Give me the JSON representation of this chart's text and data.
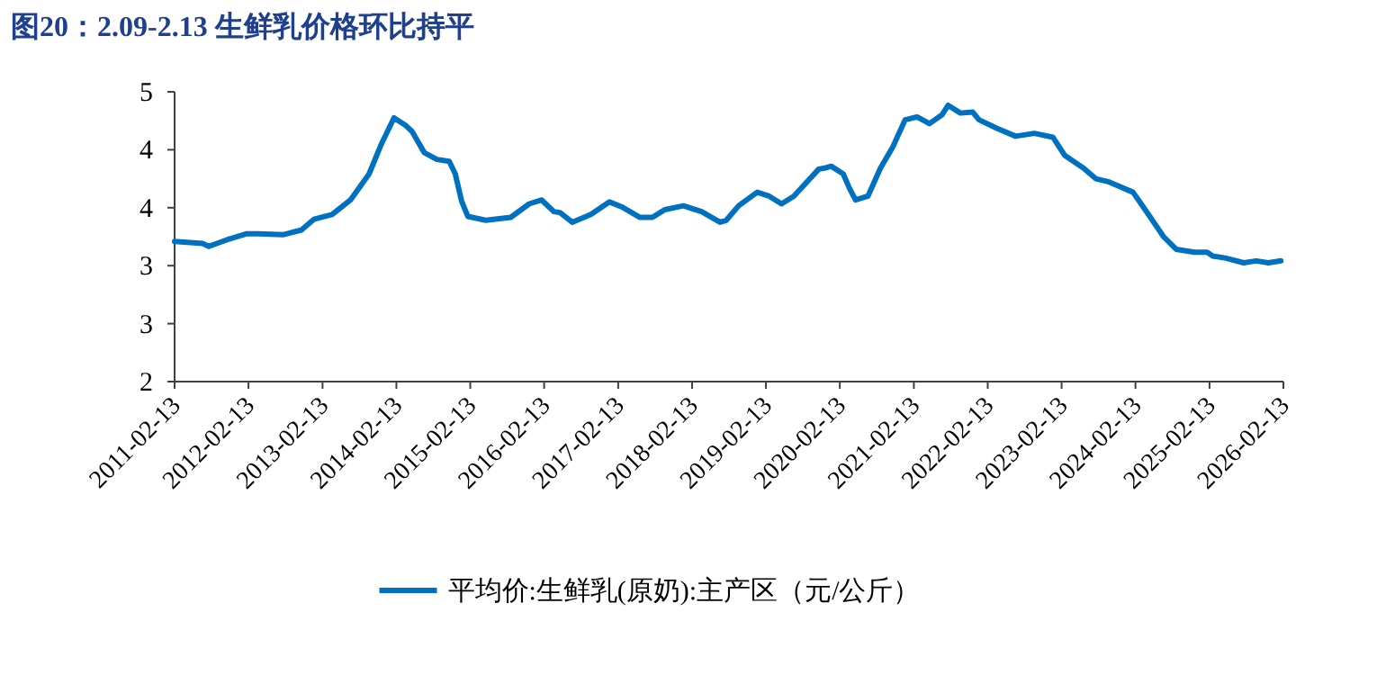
{
  "chart_data": {
    "type": "line",
    "title": "图20：2.09-2.13 生鲜乳价格环比持平",
    "x": [
      "2011-02-13",
      "2011-07",
      "2011-08",
      "2011-11",
      "2012-02",
      "2012-04",
      "2012-08",
      "2012-11",
      "2013-01",
      "2013-04",
      "2013-07",
      "2013-10",
      "2013-12",
      "2014-02",
      "2014-04",
      "2014-05",
      "2014-07",
      "2014-09",
      "2014-11",
      "2014-12",
      "2015-01",
      "2015-02",
      "2015-05",
      "2015-09",
      "2015-12",
      "2016-02",
      "2016-04",
      "2016-05",
      "2016-07",
      "2016-10",
      "2017-01",
      "2017-03",
      "2017-06",
      "2017-08",
      "2017-10",
      "2018-01",
      "2018-04",
      "2018-07",
      "2018-08",
      "2018-10",
      "2019-01",
      "2019-03",
      "2019-05",
      "2019-07",
      "2019-11",
      "2019-12",
      "2020-01",
      "2020-03",
      "2020-04",
      "2020-05",
      "2020-07",
      "2020-09",
      "2020-11",
      "2021-01",
      "2021-03",
      "2021-05",
      "2021-07",
      "2021-08",
      "2021-10",
      "2021-12",
      "2022-01",
      "2022-04",
      "2022-07",
      "2022-10",
      "2023-01",
      "2023-03",
      "2023-06",
      "2023-08",
      "2023-10",
      "2024-02",
      "2024-04",
      "2024-07",
      "2024-09",
      "2024-12",
      "2025-02",
      "2025-03",
      "2025-05",
      "2025-08",
      "2025-10",
      "2025-12",
      "2026-02"
    ],
    "series": [
      {
        "name": "平均价:生鲜乳(原奶):主产区（元/公斤）",
        "color": "#0070c0",
        "values": [
          3.45,
          3.43,
          3.4,
          3.47,
          3.53,
          3.53,
          3.52,
          3.57,
          3.68,
          3.73,
          3.88,
          4.15,
          4.46,
          4.73,
          4.65,
          4.59,
          4.37,
          4.3,
          4.28,
          4.15,
          3.87,
          3.71,
          3.67,
          3.7,
          3.84,
          3.88,
          3.76,
          3.75,
          3.65,
          3.73,
          3.86,
          3.81,
          3.7,
          3.7,
          3.78,
          3.82,
          3.76,
          3.65,
          3.67,
          3.82,
          3.96,
          3.92,
          3.84,
          3.92,
          4.2,
          4.21,
          4.23,
          4.15,
          4.0,
          3.88,
          3.92,
          4.21,
          4.43,
          4.71,
          4.74,
          4.67,
          4.76,
          4.86,
          4.78,
          4.79,
          4.71,
          4.62,
          4.54,
          4.57,
          4.53,
          4.34,
          4.21,
          4.1,
          4.07,
          3.96,
          3.78,
          3.5,
          3.37,
          3.34,
          3.34,
          3.3,
          3.28,
          3.23,
          3.25,
          3.23,
          3.25
        ]
      }
    ],
    "xlim": [
      "2011-02-13",
      "2026-02-13"
    ],
    "xticks": [
      "2011-02-13",
      "2012-02-13",
      "2013-02-13",
      "2014-02-13",
      "2015-02-13",
      "2016-02-13",
      "2017-02-13",
      "2018-02-13",
      "2019-02-13",
      "2020-02-13",
      "2021-02-13",
      "2022-02-13",
      "2023-02-13",
      "2024-02-13",
      "2025-02-13",
      "2026-02-13"
    ],
    "ylim": [
      2,
      5
    ],
    "yticks": [
      2,
      {
        "value": 2.6,
        "label": "3"
      },
      {
        "value": 3.2,
        "label": "3"
      },
      {
        "value": 3.8,
        "label": "4"
      },
      {
        "value": 4.4,
        "label": "4"
      },
      5
    ],
    "legend": "bottom"
  }
}
